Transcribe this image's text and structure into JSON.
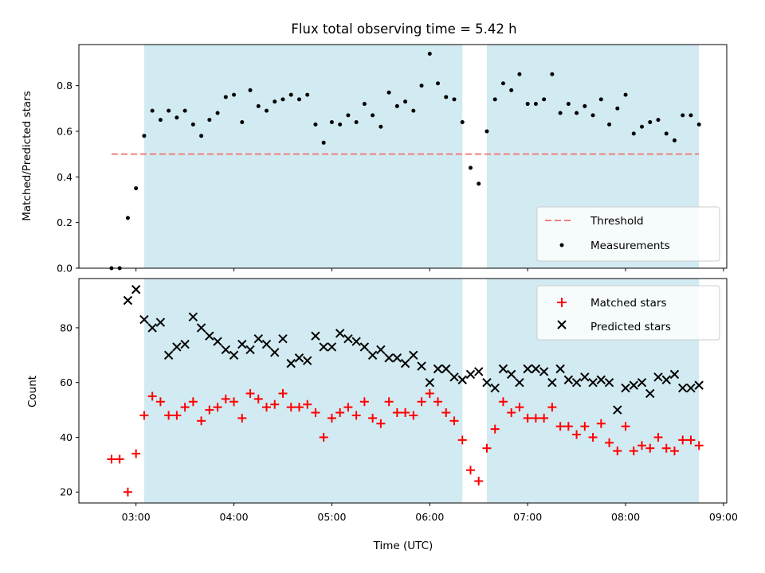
{
  "title": "Flux total observing time = 5.42 h",
  "colors": {
    "shade": "#add8e6",
    "threshold": "#f08080",
    "matched": "#ff0000",
    "predicted": "#000000",
    "measurement": "#000000"
  },
  "shaded_intervals": [
    [
      "03:05",
      "06:20"
    ],
    [
      "06:35",
      "08:45"
    ]
  ],
  "chart_data": [
    {
      "type": "scatter",
      "ylabel": "Matched/Predicted stars",
      "xlim": [
        "02:25",
        "09:02"
      ],
      "ylim": [
        0,
        0.98
      ],
      "y_ticks": [
        0.0,
        0.2,
        0.4,
        0.6,
        0.8
      ],
      "legend_position": "lower-right",
      "threshold": {
        "name": "Threshold",
        "value": 0.5,
        "x_range": [
          "02:45",
          "08:45"
        ]
      },
      "series": [
        {
          "name": "Measurements",
          "marker": "dot",
          "x": [
            "02:45",
            "02:50",
            "02:55",
            "03:00",
            "03:05",
            "03:10",
            "03:15",
            "03:20",
            "03:25",
            "03:30",
            "03:35",
            "03:40",
            "03:45",
            "03:50",
            "03:55",
            "04:00",
            "04:05",
            "04:10",
            "04:15",
            "04:20",
            "04:25",
            "04:30",
            "04:35",
            "04:40",
            "04:45",
            "04:50",
            "04:55",
            "05:00",
            "05:05",
            "05:10",
            "05:15",
            "05:20",
            "05:25",
            "05:30",
            "05:35",
            "05:40",
            "05:45",
            "05:50",
            "05:55",
            "06:00",
            "06:05",
            "06:10",
            "06:15",
            "06:20",
            "06:25",
            "06:30",
            "06:35",
            "06:40",
            "06:45",
            "06:50",
            "06:55",
            "07:00",
            "07:05",
            "07:10",
            "07:15",
            "07:20",
            "07:25",
            "07:30",
            "07:35",
            "07:40",
            "07:45",
            "07:50",
            "07:55",
            "08:00",
            "08:05",
            "08:10",
            "08:15",
            "08:20",
            "08:25",
            "08:30",
            "08:35",
            "08:40",
            "08:45"
          ],
          "y": [
            0.0,
            0.0,
            0.22,
            0.35,
            0.58,
            0.69,
            0.65,
            0.69,
            0.66,
            0.69,
            0.63,
            0.58,
            0.65,
            0.68,
            0.75,
            0.76,
            0.64,
            0.78,
            0.71,
            0.69,
            0.73,
            0.74,
            0.76,
            0.74,
            0.76,
            0.63,
            0.55,
            0.64,
            0.63,
            0.67,
            0.64,
            0.72,
            0.67,
            0.62,
            0.77,
            0.71,
            0.73,
            0.69,
            0.8,
            0.94,
            0.81,
            0.75,
            0.74,
            0.64,
            0.44,
            0.37,
            0.6,
            0.74,
            0.81,
            0.78,
            0.85,
            0.72,
            0.72,
            0.74,
            0.85,
            0.68,
            0.72,
            0.68,
            0.71,
            0.67,
            0.74,
            0.63,
            0.7,
            0.76,
            0.59,
            0.62,
            0.64,
            0.65,
            0.59,
            0.56,
            0.67,
            0.67,
            0.63
          ]
        }
      ]
    },
    {
      "type": "scatter",
      "xlabel": "Time (UTC)",
      "ylabel": "Count",
      "xlim": [
        "02:25",
        "09:02"
      ],
      "ylim": [
        16,
        98
      ],
      "y_ticks": [
        20,
        40,
        60,
        80
      ],
      "x_ticks": [
        "03:00",
        "04:00",
        "05:00",
        "06:00",
        "07:00",
        "08:00",
        "09:00"
      ],
      "legend_position": "upper-right",
      "series": [
        {
          "name": "Matched stars",
          "marker": "plus",
          "x": [
            "02:45",
            "02:50",
            "02:55",
            "03:00",
            "03:05",
            "03:10",
            "03:15",
            "03:20",
            "03:25",
            "03:30",
            "03:35",
            "03:40",
            "03:45",
            "03:50",
            "03:55",
            "04:00",
            "04:05",
            "04:10",
            "04:15",
            "04:20",
            "04:25",
            "04:30",
            "04:35",
            "04:40",
            "04:45",
            "04:50",
            "04:55",
            "05:00",
            "05:05",
            "05:10",
            "05:15",
            "05:20",
            "05:25",
            "05:30",
            "05:35",
            "05:40",
            "05:45",
            "05:50",
            "05:55",
            "06:00",
            "06:05",
            "06:10",
            "06:15",
            "06:20",
            "06:25",
            "06:30",
            "06:35",
            "06:40",
            "06:45",
            "06:50",
            "06:55",
            "07:00",
            "07:05",
            "07:10",
            "07:15",
            "07:20",
            "07:25",
            "07:30",
            "07:35",
            "07:40",
            "07:45",
            "07:50",
            "07:55",
            "08:00",
            "08:05",
            "08:10",
            "08:15",
            "08:20",
            "08:25",
            "08:30",
            "08:35",
            "08:40",
            "08:45"
          ],
          "y": [
            32,
            32,
            20,
            34,
            48,
            55,
            53,
            48,
            48,
            51,
            53,
            46,
            50,
            51,
            54,
            53,
            47,
            56,
            54,
            51,
            52,
            56,
            51,
            51,
            52,
            49,
            40,
            47,
            49,
            51,
            48,
            53,
            47,
            45,
            53,
            49,
            49,
            48,
            53,
            56,
            53,
            49,
            46,
            39,
            28,
            24,
            36,
            43,
            53,
            49,
            51,
            47,
            47,
            47,
            51,
            44,
            44,
            41,
            44,
            40,
            45,
            38,
            35,
            44,
            35,
            37,
            36,
            40,
            36,
            35,
            39,
            39,
            37
          ]
        },
        {
          "name": "Predicted stars",
          "marker": "x",
          "x": [
            "02:55",
            "03:00",
            "03:05",
            "03:10",
            "03:15",
            "03:20",
            "03:25",
            "03:30",
            "03:35",
            "03:40",
            "03:45",
            "03:50",
            "03:55",
            "04:00",
            "04:05",
            "04:10",
            "04:15",
            "04:20",
            "04:25",
            "04:30",
            "04:35",
            "04:40",
            "04:45",
            "04:50",
            "04:55",
            "05:00",
            "05:05",
            "05:10",
            "05:15",
            "05:20",
            "05:25",
            "05:30",
            "05:35",
            "05:40",
            "05:45",
            "05:50",
            "05:55",
            "06:00",
            "06:05",
            "06:10",
            "06:15",
            "06:20",
            "06:25",
            "06:30",
            "06:35",
            "06:40",
            "06:45",
            "06:50",
            "06:55",
            "07:00",
            "07:05",
            "07:10",
            "07:15",
            "07:20",
            "07:25",
            "07:30",
            "07:35",
            "07:40",
            "07:45",
            "07:50",
            "07:55",
            "08:00",
            "08:05",
            "08:10",
            "08:15",
            "08:20",
            "08:25",
            "08:30",
            "08:35",
            "08:40",
            "08:45"
          ],
          "y": [
            90,
            94,
            83,
            80,
            82,
            70,
            73,
            74,
            84,
            80,
            77,
            75,
            72,
            70,
            74,
            72,
            76,
            74,
            71,
            76,
            67,
            69,
            68,
            77,
            73,
            73,
            78,
            76,
            75,
            73,
            70,
            72,
            69,
            69,
            67,
            70,
            66,
            60,
            65,
            65,
            62,
            61,
            63,
            64,
            60,
            58,
            65,
            63,
            60,
            65,
            65,
            64,
            60,
            65,
            61,
            60,
            62,
            60,
            61,
            60,
            50,
            58,
            59,
            60,
            56,
            62,
            61,
            63,
            58,
            58,
            59
          ]
        }
      ]
    }
  ]
}
